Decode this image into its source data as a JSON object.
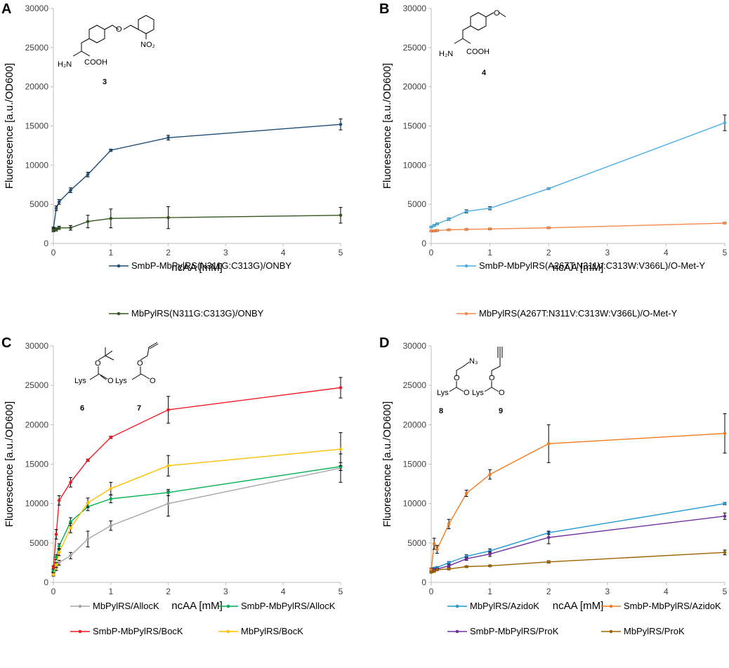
{
  "chart_data": [
    {
      "type": "line",
      "panel": "A",
      "ylabel": "Fluorescence [a.u./OD600]",
      "xlabel": "ncAA [mM]",
      "xlim": [
        0,
        5
      ],
      "ylim": [
        0,
        30000
      ],
      "xticks": [
        "0",
        "1",
        "2",
        "3",
        "4",
        "5"
      ],
      "yticks": [
        "0",
        "5000",
        "10000",
        "15000",
        "20000",
        "25000",
        "30000"
      ],
      "compound": {
        "number": "3",
        "labels": [
          "H₂N",
          "COOH",
          "NO₂"
        ]
      },
      "x": [
        0,
        0.05,
        0.1,
        0.3,
        0.6,
        1,
        2,
        5
      ],
      "series": [
        {
          "name": "SmbP-MbPylRS(N311G:C313G)/ONBY",
          "color": "#1f4e79",
          "values": [
            1900,
            4500,
            5300,
            6800,
            8800,
            11900,
            13500,
            15200
          ],
          "errors": [
            200,
            300,
            300,
            300,
            300,
            150,
            300,
            700
          ]
        },
        {
          "name": "MbPylRS(N311G:C313G)/ONBY",
          "color": "#375623",
          "values": [
            1700,
            1800,
            2000,
            2000,
            2800,
            3200,
            3300,
            3600
          ],
          "errors": [
            200,
            200,
            200,
            300,
            800,
            1200,
            1400,
            1000
          ]
        }
      ]
    },
    {
      "type": "line",
      "panel": "B",
      "ylabel": "Fluorescence [a.u./OD600]",
      "xlabel": "ncAA [mM]",
      "xlim": [
        0,
        5
      ],
      "ylim": [
        0,
        30000
      ],
      "xticks": [
        "0",
        "1",
        "2",
        "3",
        "4",
        "5"
      ],
      "yticks": [
        "0",
        "5000",
        "10000",
        "15000",
        "20000",
        "25000",
        "30000"
      ],
      "compound": {
        "number": "4",
        "labels": [
          "H₂N",
          "COOH"
        ]
      },
      "x": [
        0,
        0.05,
        0.1,
        0.3,
        0.6,
        1,
        2,
        5
      ],
      "series": [
        {
          "name": "SmbP-MbPylRS(A267T:N311V:C313W:V366L)/O-Met-Y",
          "color": "#4baee0",
          "values": [
            2100,
            2300,
            2500,
            3100,
            4100,
            4500,
            7000,
            15400
          ],
          "errors": [
            100,
            100,
            100,
            150,
            200,
            200,
            100,
            1000
          ]
        },
        {
          "name": "MbPylRS(A267T:N311V:C313W:V366L)/O-Met-Y",
          "color": "#f4894a",
          "values": [
            1600,
            1600,
            1650,
            1750,
            1800,
            1850,
            2000,
            2600
          ],
          "errors": [
            100,
            100,
            100,
            100,
            100,
            100,
            100,
            100
          ]
        }
      ]
    },
    {
      "type": "line",
      "panel": "C",
      "ylabel": "Fluorescence [a.u./OD600]",
      "xlabel": "ncAA [mM]",
      "xlim": [
        0,
        5
      ],
      "ylim": [
        0,
        30000
      ],
      "xticks": [
        "0",
        "1",
        "2",
        "3",
        "4",
        "5"
      ],
      "yticks": [
        "0",
        "5000",
        "10000",
        "15000",
        "20000",
        "25000",
        "30000"
      ],
      "compounds": [
        {
          "number": "6",
          "label": "Lys"
        },
        {
          "number": "7",
          "label": "Lys"
        }
      ],
      "x": [
        0,
        0.05,
        0.1,
        0.3,
        0.6,
        1,
        2,
        5
      ],
      "series": [
        {
          "name": "MbPylRS/AllocK",
          "color": "#a6a6a6",
          "values": [
            1200,
            1800,
            2500,
            3400,
            5500,
            7200,
            10000,
            14500
          ],
          "errors": [
            200,
            300,
            300,
            400,
            1000,
            600,
            1600,
            1800
          ]
        },
        {
          "name": "SmbP-MbPylRS/AllocK",
          "color": "#00b050",
          "values": [
            1500,
            3200,
            4600,
            7700,
            9600,
            10600,
            11400,
            14700
          ],
          "errors": [
            200,
            300,
            300,
            500,
            500,
            500,
            400,
            500
          ]
        },
        {
          "name": "SmbP-MbPylRS/BocK",
          "color": "#ee1c25",
          "values": [
            1900,
            6100,
            10400,
            12700,
            15500,
            18400,
            21900,
            24700
          ],
          "errors": [
            200,
            600,
            600,
            600,
            150,
            150,
            1700,
            1300
          ]
        },
        {
          "name": "MbPylRS/BocK",
          "color": "#ffc000",
          "values": [
            1000,
            2200,
            3800,
            6900,
            10100,
            11900,
            14800,
            16900
          ],
          "errors": [
            200,
            300,
            400,
            600,
            600,
            800,
            1300,
            2100
          ]
        }
      ]
    },
    {
      "type": "line",
      "panel": "D",
      "ylabel": "Fluorescence [a.u./OD600]",
      "xlabel": "ncAA [mM]",
      "xlim": [
        0,
        5
      ],
      "ylim": [
        0,
        30000
      ],
      "xticks": [
        "0",
        "1",
        "2",
        "3",
        "4",
        "5"
      ],
      "yticks": [
        "0",
        "5000",
        "10000",
        "15000",
        "20000",
        "25000",
        "30000"
      ],
      "compounds": [
        {
          "number": "8",
          "label": "Lys",
          "azide": "N₃"
        },
        {
          "number": "9",
          "label": "Lys"
        }
      ],
      "x": [
        0,
        0.05,
        0.1,
        0.3,
        0.6,
        1,
        2,
        5
      ],
      "series": [
        {
          "name": "MbPylRS/AzidoK",
          "color": "#1f9ad6",
          "values": [
            1500,
            1800,
            1900,
            2500,
            3300,
            4000,
            6300,
            10000
          ],
          "errors": [
            100,
            100,
            100,
            150,
            200,
            250,
            200,
            150
          ]
        },
        {
          "name": "SmbP-MbPylRS/AzidoK",
          "color": "#f47b20",
          "values": [
            1600,
            4900,
            4200,
            7400,
            11300,
            13700,
            17600,
            18900
          ],
          "errors": [
            200,
            700,
            500,
            600,
            400,
            600,
            2400,
            2500
          ]
        },
        {
          "name": "SmbP-MbPylRS/ProK",
          "color": "#7030a0",
          "values": [
            1300,
            1600,
            1700,
            2100,
            3000,
            3600,
            5700,
            8400
          ],
          "errors": [
            100,
            100,
            100,
            200,
            200,
            300,
            800,
            400
          ]
        },
        {
          "name": "MbPylRS/ProK",
          "color": "#9c6500",
          "values": [
            1300,
            1400,
            1600,
            1700,
            2000,
            2100,
            2600,
            3800
          ],
          "errors": [
            100,
            100,
            100,
            100,
            100,
            100,
            150,
            300
          ]
        }
      ]
    }
  ]
}
